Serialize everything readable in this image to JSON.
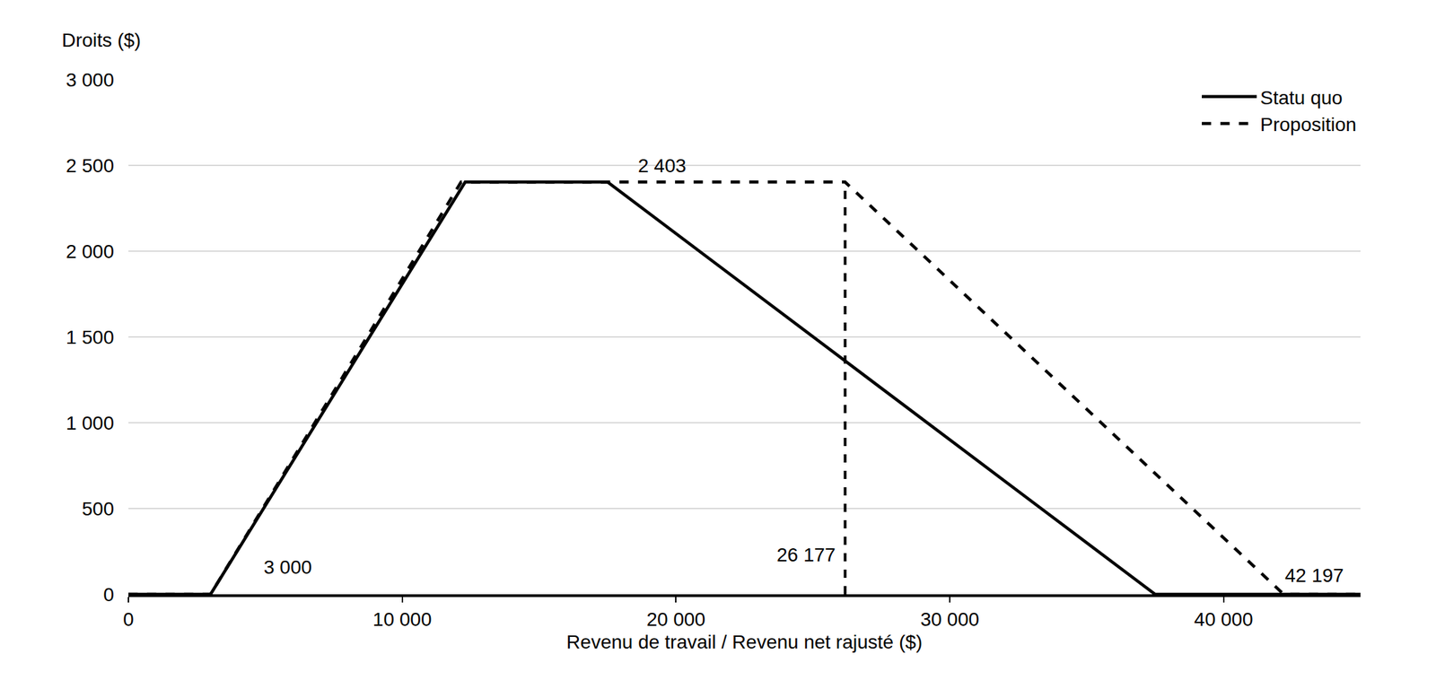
{
  "chart_data": {
    "type": "line",
    "x_label": "Revenu de travail / Revenu net rajusté ($)",
    "y_label": "Droits ($)",
    "series": [
      {
        "name": "Statu quo",
        "color": "#000000",
        "line_style": "solid",
        "x": [
          0,
          3000,
          12300,
          17500,
          37500,
          45000
        ],
        "values": [
          0,
          0,
          2403,
          2403,
          0,
          0
        ]
      },
      {
        "name": "Proposition",
        "color": "#000000",
        "line_style": "dash",
        "x": [
          0,
          3000,
          12150,
          26177,
          42197,
          45000
        ],
        "values": [
          0,
          0,
          2403,
          2403,
          0,
          0
        ]
      }
    ],
    "reference_lines": [
      {
        "x": 26177,
        "y0": 0,
        "y1": 2403,
        "line_style": "dash",
        "color": "#000000"
      }
    ],
    "annotations": [
      {
        "text": "2 403",
        "x": 19500,
        "y": 2403
      },
      {
        "text": "3 000",
        "x": 3000,
        "y": 0
      },
      {
        "text": "26 177",
        "x": 26177,
        "y": 0
      },
      {
        "text": "42 197",
        "x": 42197,
        "y": 0
      }
    ],
    "xlim": [
      0,
      45000
    ],
    "xticks": [
      0,
      {
        "value": 10000,
        "label": "10 000"
      },
      {
        "value": 20000,
        "label": "20 000"
      },
      {
        "value": 30000,
        "label": "30 000"
      },
      {
        "value": 40000,
        "label": "40 000"
      }
    ],
    "ylim": [
      0,
      3000
    ],
    "yticks": [
      0,
      {
        "value": 500,
        "label": "500"
      },
      {
        "value": 1000,
        "label": "1 000"
      },
      {
        "value": 1500,
        "label": "1 500"
      },
      {
        "value": 2000,
        "label": "2 000"
      },
      {
        "value": 2500,
        "label": "2 500"
      },
      {
        "value": 3000,
        "label": "3 000"
      }
    ],
    "grid": true,
    "legend": "top-right"
  }
}
